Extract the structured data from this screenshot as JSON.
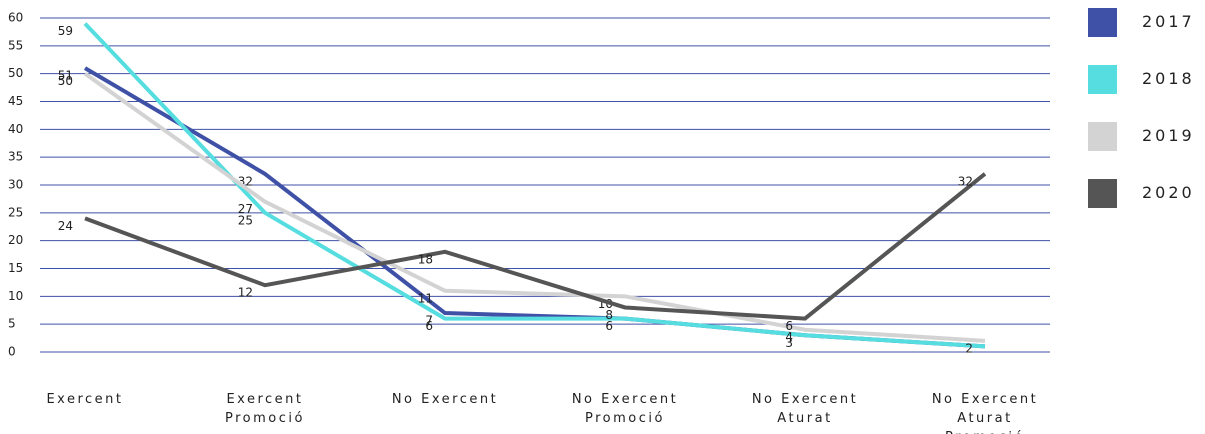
{
  "chart_data": {
    "type": "line",
    "categories": [
      "Exercent",
      "Exercent Promoció",
      "No Exercent",
      "No Exercent Promoció",
      "No Exercent Aturat",
      "No Exercent Aturat Promoció"
    ],
    "series": [
      {
        "name": "2017",
        "color": "#3f51a6",
        "values": [
          51,
          32,
          7,
          6,
          3,
          1
        ],
        "value_labels": [
          "51",
          "32",
          "7",
          "6",
          "3",
          null
        ]
      },
      {
        "name": "2018",
        "color": "#55dde0",
        "values": [
          59,
          25,
          6,
          6,
          3,
          1
        ],
        "value_labels": [
          "59",
          "25",
          "6",
          null,
          null,
          null
        ]
      },
      {
        "name": "2019",
        "color": "#d3d3d3",
        "values": [
          50,
          27,
          11,
          10,
          4,
          2
        ],
        "value_labels": [
          "50",
          "27",
          "11",
          "10",
          "4",
          "2"
        ]
      },
      {
        "name": "2020",
        "color": "#555555",
        "values": [
          24,
          12,
          18,
          8,
          6,
          32
        ],
        "value_labels": [
          "24",
          "12",
          "18",
          "8",
          "6",
          "32"
        ]
      }
    ],
    "ylim": [
      0,
      60
    ],
    "yticks": [
      0,
      5,
      10,
      15,
      20,
      25,
      30,
      35,
      40,
      45,
      50,
      55,
      60
    ],
    "grid": true,
    "grid_color": "#3f51a6",
    "legend": "right"
  }
}
